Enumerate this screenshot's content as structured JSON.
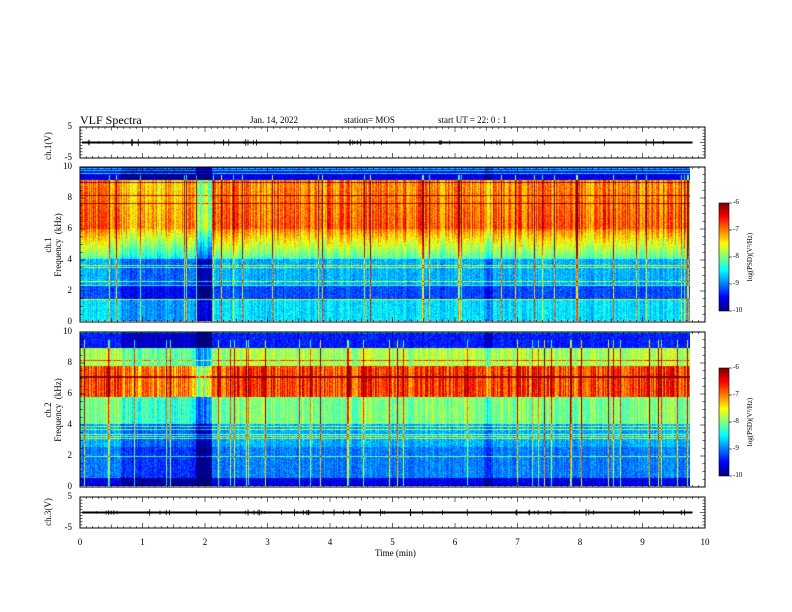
{
  "header": {
    "title": "VLF Spectra",
    "date": "Jan. 14, 2022",
    "station": "station= MOS",
    "start": "start  UT =   22: 0  : 1"
  },
  "chart_data": [
    {
      "type": "line",
      "panel": "ch1-waveform",
      "ylabel": "ch.1(V)",
      "ylim": [
        -5,
        5
      ],
      "yticks_labeled": [
        "5",
        "-5"
      ],
      "xlim": [
        0,
        10
      ],
      "baseline": 0
    },
    {
      "type": "heatmap",
      "panel": "ch1-spectrogram",
      "ylabel": "ch.1\nFrequency  (kHz)",
      "ylim": [
        0,
        10
      ],
      "yticks": [
        "0",
        "2",
        "4",
        "6",
        "8",
        "10"
      ],
      "xlim": [
        0,
        10
      ],
      "data_end_min": 9.8,
      "colorbar": {
        "label": "log(PSD)(V²/Hz)",
        "range": [
          -10,
          -6
        ],
        "ticks": [
          "-6",
          "-7",
          "-8",
          "-9",
          "-10"
        ]
      }
    },
    {
      "type": "heatmap",
      "panel": "ch2-spectrogram",
      "ylabel": "ch.2\nFrequency  (kHz)",
      "ylim": [
        0,
        10
      ],
      "yticks": [
        "0",
        "2",
        "4",
        "6",
        "8",
        "10"
      ],
      "xlim": [
        0,
        10
      ],
      "data_end_min": 9.8,
      "colorbar": {
        "label": "log(PSD)(V²/Hz)",
        "range": [
          -10,
          -6
        ],
        "ticks": [
          "-6",
          "-7",
          "-8",
          "-9",
          "-10"
        ]
      }
    },
    {
      "type": "line",
      "panel": "ch3-waveform",
      "ylabel": "ch.3(V)",
      "ylim": [
        -5,
        5
      ],
      "yticks_labeled": [
        "5",
        "-5"
      ],
      "xlim": [
        0,
        10
      ],
      "xlabel": "Time  (min)",
      "xticks": [
        "0",
        "1",
        "2",
        "3",
        "4",
        "5",
        "6",
        "7",
        "8",
        "9",
        "10"
      ],
      "baseline": 0
    }
  ]
}
